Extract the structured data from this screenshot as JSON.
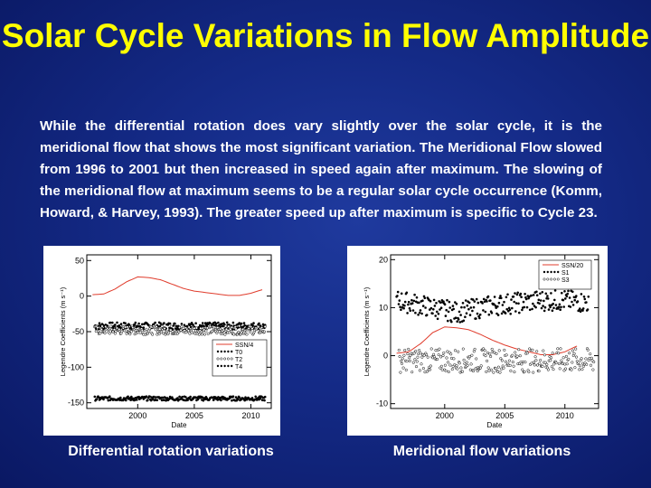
{
  "slide": {
    "title": "Solar Cycle Variations in Flow Amplitude",
    "body": "While the differential rotation does vary slightly over the solar cycle, it is the meridional flow that shows the most significant variation. The Meridional Flow slowed from 1996 to 2001 but then increased in speed again after maximum. The slowing of the meridional flow at maximum seems to be a regular solar cycle occurrence (Komm, Howard, & Harvey, 1993). The greater speed up after maximum is specific to Cycle 23.",
    "caption_left": "Differential rotation variations",
    "caption_right": "Meridional flow variations"
  },
  "colors": {
    "background": "#142a86",
    "title": "#ffff00",
    "text": "#ffffff",
    "ssn": "#e03c2c",
    "points": "#000000"
  },
  "chart_data": [
    {
      "type": "scatter",
      "xlabel": "Date",
      "ylabel": "Legendre Coefficients (m s⁻¹)",
      "xlim": [
        1995.5,
        2011.8
      ],
      "ylim": [
        -158,
        58
      ],
      "xticks": [
        2000,
        2005,
        2010
      ],
      "yticks": [
        50,
        0,
        -50,
        -100,
        -150
      ],
      "legend_position": "right-middle",
      "series": [
        {
          "name": "SSN/4",
          "style": "line",
          "color": "#e03c2c",
          "x": [
            1996,
            1997,
            1998,
            1999,
            2000,
            2001,
            2002,
            2003,
            2004,
            2005,
            2006,
            2007,
            2008,
            2009,
            2010,
            2011
          ],
          "y": [
            2,
            3,
            10,
            20,
            27,
            26,
            23,
            17,
            11,
            7,
            5,
            3,
            1,
            1,
            4,
            9
          ]
        },
        {
          "name": "T0",
          "style": "filled",
          "x_start": 1996.2,
          "x_end": 2011.3,
          "level": -42,
          "spread": 5
        },
        {
          "name": "T2",
          "style": "open",
          "x_start": 1996.2,
          "x_end": 2011.3,
          "level": -48,
          "spread": 6
        },
        {
          "name": "T4",
          "style": "filled",
          "x_start": 1996.2,
          "x_end": 2011.3,
          "level": -144,
          "spread": 3
        }
      ]
    },
    {
      "type": "scatter",
      "xlabel": "Date",
      "ylabel": "Legendre Coefficients (m s⁻¹)",
      "xlim": [
        1995.5,
        2012.8
      ],
      "ylim": [
        -11,
        21
      ],
      "xticks": [
        2000,
        2005,
        2010
      ],
      "yticks": [
        20,
        10,
        0,
        -10
      ],
      "legend_position": "top-right",
      "series": [
        {
          "name": "SSN/20",
          "style": "line",
          "color": "#e03c2c",
          "x": [
            1996,
            1997,
            1998,
            1999,
            2000,
            2001,
            2002,
            2003,
            2004,
            2005,
            2006,
            2007,
            2008,
            2009,
            2010,
            2011
          ],
          "y": [
            0.5,
            0.8,
            2.5,
            4.8,
            6,
            5.8,
            5.4,
            4.4,
            3.2,
            2.2,
            1.4,
            0.8,
            0.2,
            0.2,
            0.8,
            2
          ]
        },
        {
          "name": "S1",
          "style": "filled",
          "x": [
            1996,
            1998,
            2000,
            2001,
            2002,
            2004,
            2006,
            2008,
            2010,
            2012
          ],
          "y": [
            11.5,
            10.5,
            9.5,
            9,
            9.5,
            10.5,
            11,
            11.5,
            11.5,
            11
          ],
          "spread": 2.2
        },
        {
          "name": "S3",
          "style": "open",
          "x_start": 1996.2,
          "x_end": 2012.4,
          "level": -1,
          "spread": 2.5
        }
      ]
    }
  ]
}
